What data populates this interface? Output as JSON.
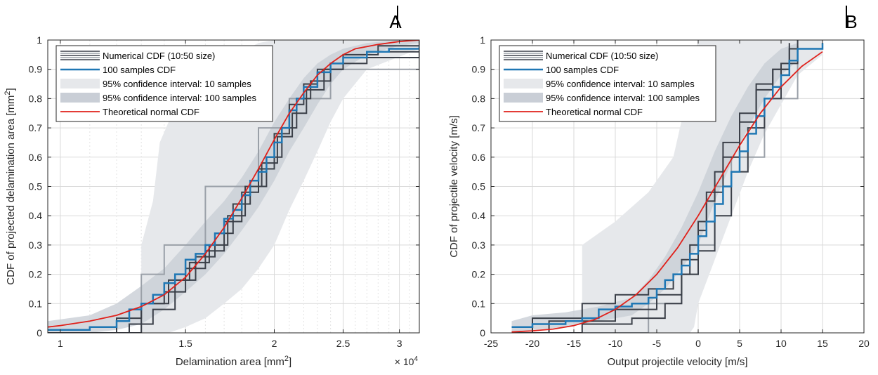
{
  "colors": {
    "numerical": "#3a3f48",
    "numerical_light": "#9aa0a8",
    "samples100": "#1f77b4",
    "ci10": "#e6e8eb",
    "ci100": "#c9ced6",
    "theoretical": "#e0201a",
    "grid": "#d9d9d9"
  },
  "chart_data": [
    {
      "panel": "A",
      "type": "line",
      "xlabel": "Delamination area [mm",
      "xlabel_sup": "2",
      "xlabel_tail": "]",
      "ylabel": "CDF of projected delamination area [mm",
      "ylabel_sup": "2",
      "ylabel_tail": "]",
      "x_multiplier": "× 10",
      "x_multiplier_exp": "4",
      "xscale": "log",
      "xlim": [
        0.96,
        3.2
      ],
      "ylim": [
        0,
        1
      ],
      "xticks": [
        1,
        1.5,
        2,
        2.5,
        3
      ],
      "xtick_labels": [
        "1",
        "1.5",
        "2",
        "2.5",
        "3"
      ],
      "yticks": [
        0,
        0.1,
        0.2,
        0.3,
        0.4,
        0.5,
        0.6,
        0.7,
        0.8,
        0.9,
        1
      ],
      "ytick_labels": [
        "0",
        "0.1",
        "0.2",
        "0.3",
        "0.4",
        "0.5",
        "0.6",
        "0.7",
        "0.8",
        "0.9",
        "1"
      ],
      "grid": true,
      "legend_position": "top-left",
      "legend": [
        "Numerical CDF (10:50 size)",
        "100 samples CDF",
        "95% confidence interval: 10 samples",
        "95% confidence interval: 100 samples",
        "Theoretical normal CDF"
      ],
      "ci10": {
        "x": [
          1.3,
          1.3,
          1.35,
          1.38,
          1.42,
          1.5,
          1.6,
          1.7,
          1.8,
          1.9,
          2.0,
          2.1,
          2.2,
          2.3,
          2.4,
          2.5,
          2.7,
          3.2
        ],
        "lower": [
          0,
          0,
          0,
          0,
          0,
          0.02,
          0.05,
          0.1,
          0.15,
          0.22,
          0.3,
          0.42,
          0.52,
          0.62,
          0.72,
          0.8,
          0.9,
          0.97
        ],
        "upper": [
          0.28,
          0.3,
          0.45,
          0.65,
          0.72,
          0.8,
          0.86,
          0.92,
          0.96,
          0.99,
          1,
          1,
          1,
          1,
          1,
          1,
          1,
          1
        ]
      },
      "ci100": {
        "x": [
          0.96,
          1.1,
          1.2,
          1.3,
          1.4,
          1.5,
          1.6,
          1.7,
          1.8,
          1.9,
          2.0,
          2.1,
          2.2,
          2.3,
          2.4,
          2.5,
          2.7,
          3.0,
          3.2
        ],
        "lower": [
          0,
          0,
          0.01,
          0.03,
          0.08,
          0.14,
          0.2,
          0.27,
          0.35,
          0.43,
          0.52,
          0.62,
          0.7,
          0.78,
          0.85,
          0.9,
          0.95,
          0.98,
          0.99
        ],
        "upper": [
          0.04,
          0.06,
          0.1,
          0.16,
          0.22,
          0.3,
          0.38,
          0.45,
          0.53,
          0.62,
          0.72,
          0.8,
          0.87,
          0.92,
          0.95,
          0.97,
          0.99,
          1,
          1
        ]
      },
      "theoretical": {
        "x": [
          0.96,
          1.0,
          1.1,
          1.2,
          1.3,
          1.4,
          1.5,
          1.6,
          1.7,
          1.8,
          1.9,
          2.0,
          2.1,
          2.2,
          2.3,
          2.4,
          2.5,
          2.6,
          2.8,
          3.0,
          3.2
        ],
        "y": [
          0.02,
          0.025,
          0.04,
          0.06,
          0.09,
          0.13,
          0.19,
          0.27,
          0.36,
          0.46,
          0.56,
          0.66,
          0.75,
          0.82,
          0.88,
          0.92,
          0.95,
          0.97,
          0.985,
          0.995,
          1.0
        ]
      },
      "samples100": {
        "x": [
          0.96,
          1.1,
          1.2,
          1.25,
          1.3,
          1.35,
          1.4,
          1.45,
          1.5,
          1.55,
          1.6,
          1.65,
          1.7,
          1.75,
          1.8,
          1.85,
          1.9,
          1.95,
          2.0,
          2.05,
          2.1,
          2.15,
          2.2,
          2.3,
          2.4,
          2.5,
          2.7,
          2.9,
          3.2
        ],
        "y": [
          0.01,
          0.02,
          0.04,
          0.08,
          0.1,
          0.13,
          0.17,
          0.2,
          0.25,
          0.27,
          0.3,
          0.34,
          0.39,
          0.42,
          0.47,
          0.52,
          0.55,
          0.6,
          0.65,
          0.7,
          0.76,
          0.8,
          0.84,
          0.89,
          0.92,
          0.94,
          0.96,
          0.97,
          0.98
        ]
      },
      "numerical_runs": [
        {
          "x": [
            0.96,
            1.2,
            1.3,
            1.4,
            1.5,
            1.6,
            1.7,
            1.8,
            1.9,
            2.0,
            2.1,
            2.2,
            2.3,
            2.5,
            2.8,
            3.2
          ],
          "y": [
            0,
            0.05,
            0.1,
            0.14,
            0.22,
            0.28,
            0.38,
            0.48,
            0.56,
            0.68,
            0.78,
            0.85,
            0.9,
            0.95,
            0.98,
            1.0
          ]
        },
        {
          "x": [
            0.96,
            1.25,
            1.35,
            1.45,
            1.55,
            1.65,
            1.75,
            1.85,
            1.95,
            2.05,
            2.15,
            2.25,
            2.4,
            2.7,
            3.2
          ],
          "y": [
            0,
            0.03,
            0.08,
            0.18,
            0.26,
            0.34,
            0.44,
            0.5,
            0.6,
            0.7,
            0.8,
            0.86,
            0.92,
            0.96,
            0.98
          ]
        },
        {
          "x": [
            0.96,
            1.3,
            1.42,
            1.52,
            1.62,
            1.72,
            1.82,
            1.92,
            2.02,
            2.12,
            2.22,
            2.35,
            2.5,
            3.2
          ],
          "y": [
            0,
            0.1,
            0.18,
            0.24,
            0.3,
            0.4,
            0.5,
            0.58,
            0.67,
            0.75,
            0.83,
            0.9,
            0.94,
            0.99
          ]
        }
      ],
      "numerical_light": {
        "x": [
          0.96,
          1.3,
          1.4,
          1.6,
          1.9,
          2.1,
          2.4,
          3.2
        ],
        "y": [
          0,
          0.2,
          0.3,
          0.5,
          0.7,
          0.8,
          0.9,
          0.97
        ]
      }
    },
    {
      "panel": "B",
      "type": "line",
      "xlabel": "Output projectile velocity [m/s]",
      "ylabel": "CDF of projectile velocity [m/s]",
      "xscale": "linear",
      "xlim": [
        -25,
        20
      ],
      "ylim": [
        0,
        1
      ],
      "xticks": [
        -25,
        -20,
        -15,
        -10,
        -5,
        0,
        5,
        10,
        15,
        20
      ],
      "xtick_labels": [
        "-25",
        "-20",
        "-15",
        "-10",
        "-5",
        "0",
        "5",
        "10",
        "15",
        "20"
      ],
      "yticks": [
        0,
        0.1,
        0.2,
        0.3,
        0.4,
        0.5,
        0.6,
        0.7,
        0.8,
        0.9,
        1
      ],
      "ytick_labels": [
        "0",
        "0.1",
        "0.2",
        "0.3",
        "0.4",
        "0.5",
        "0.6",
        "0.7",
        "0.8",
        "0.9",
        "1"
      ],
      "grid": true,
      "legend_position": "top-left",
      "legend": [
        "Numerical CDF (10:50 size)",
        "100 samples CDF",
        "95% confidence interval: 10 samples",
        "95% confidence interval: 100 samples",
        "Theoretical normal CDF"
      ],
      "ci10": {
        "x": [
          -14,
          -14,
          -10,
          -6,
          -3,
          -1,
          -0.5,
          0,
          2,
          4,
          6,
          8,
          10,
          12,
          15
        ],
        "lower": [
          0,
          0,
          0,
          0,
          0,
          0,
          0.02,
          0.1,
          0.25,
          0.4,
          0.55,
          0.68,
          0.78,
          0.88,
          0.95
        ],
        "upper": [
          0.28,
          0.3,
          0.38,
          0.48,
          0.6,
          0.85,
          0.95,
          1,
          1,
          1,
          1,
          1,
          1,
          1,
          1
        ]
      },
      "ci100": {
        "x": [
          -22.5,
          -20,
          -16,
          -12,
          -8,
          -6,
          -4,
          -2,
          0,
          2,
          4,
          6,
          8,
          10,
          12
        ],
        "lower": [
          0,
          0.01,
          0.02,
          0.04,
          0.06,
          0.1,
          0.15,
          0.22,
          0.3,
          0.45,
          0.58,
          0.7,
          0.8,
          0.88,
          0.93
        ],
        "upper": [
          0.04,
          0.06,
          0.07,
          0.09,
          0.12,
          0.18,
          0.26,
          0.36,
          0.48,
          0.62,
          0.74,
          0.84,
          0.92,
          0.97,
          0.99
        ]
      },
      "theoretical": {
        "x": [
          -22.5,
          -20,
          -17.5,
          -15,
          -12.5,
          -10,
          -7.5,
          -5,
          -2.5,
          0,
          2.5,
          5,
          7.5,
          10,
          12.5,
          15
        ],
        "y": [
          0.003,
          0.007,
          0.013,
          0.025,
          0.045,
          0.08,
          0.13,
          0.2,
          0.29,
          0.4,
          0.52,
          0.64,
          0.75,
          0.84,
          0.91,
          0.96
        ]
      },
      "samples100": {
        "x": [
          -22.5,
          -20,
          -16,
          -14,
          -12,
          -10,
          -8,
          -6,
          -5,
          -4,
          -3,
          -2,
          -1,
          0,
          1,
          2,
          3,
          4,
          5,
          6,
          7,
          8,
          9,
          10,
          11,
          12,
          15
        ],
        "y": [
          0.02,
          0.03,
          0.04,
          0.05,
          0.08,
          0.09,
          0.1,
          0.12,
          0.15,
          0.18,
          0.2,
          0.23,
          0.27,
          0.33,
          0.38,
          0.44,
          0.5,
          0.55,
          0.62,
          0.68,
          0.74,
          0.8,
          0.84,
          0.88,
          0.93,
          0.97,
          0.99
        ]
      },
      "numerical_runs": [
        {
          "x": [
            -22.5,
            -20,
            -14,
            -10,
            -6,
            -3,
            -1,
            0,
            1,
            2,
            3,
            5,
            7,
            9,
            11,
            12
          ],
          "y": [
            0,
            0.05,
            0.1,
            0.13,
            0.15,
            0.2,
            0.3,
            0.38,
            0.45,
            0.55,
            0.65,
            0.75,
            0.85,
            0.9,
            0.97,
            1.0
          ]
        },
        {
          "x": [
            -22.5,
            -14,
            -8,
            -4,
            -2,
            0,
            2,
            4,
            6,
            8,
            10,
            12
          ],
          "y": [
            0,
            0.03,
            0.05,
            0.1,
            0.2,
            0.28,
            0.4,
            0.55,
            0.7,
            0.8,
            0.92,
            0.98
          ]
        },
        {
          "x": [
            -22.5,
            -18,
            -10,
            -5,
            -2,
            0,
            1,
            3,
            5,
            7,
            9,
            11
          ],
          "y": [
            0,
            0.04,
            0.08,
            0.13,
            0.25,
            0.35,
            0.48,
            0.6,
            0.72,
            0.83,
            0.9,
            0.99
          ]
        }
      ],
      "numerical_light": {
        "x": [
          -22.5,
          -6,
          -2,
          0,
          2,
          4,
          8,
          12
        ],
        "y": [
          0,
          0.1,
          0.2,
          0.3,
          0.5,
          0.6,
          0.8,
          0.97
        ]
      }
    }
  ]
}
